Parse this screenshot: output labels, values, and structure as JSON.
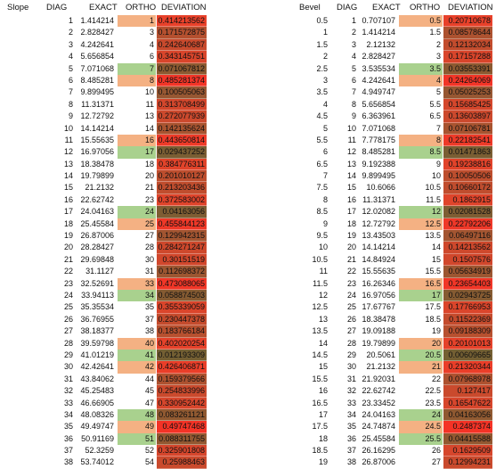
{
  "left": {
    "headers": {
      "label": "Slope",
      "diag": "DIAG",
      "exact": "EXACT",
      "ortho": "ORTHO",
      "deviation": "DEVIATION"
    },
    "rows": [
      {
        "diag": "1",
        "exact": "1.414214",
        "ortho": "1",
        "ortho_color": "#f4b183",
        "dev": "0.414213562",
        "dev_color": "#e8412a"
      },
      {
        "diag": "2",
        "exact": "2.828427",
        "ortho": "3",
        "ortho_color": "",
        "dev": "0.171572875",
        "dev_color": "#b5502f"
      },
      {
        "diag": "3",
        "exact": "4.242641",
        "ortho": "4",
        "ortho_color": "",
        "dev": "0.242640687",
        "dev_color": "#c84a2d"
      },
      {
        "diag": "4",
        "exact": "5.656854",
        "ortho": "6",
        "ortho_color": "",
        "dev": "0.343145751",
        "dev_color": "#d9452b"
      },
      {
        "diag": "5",
        "exact": "7.071068",
        "ortho": "7",
        "ortho_color": "#a9d18e",
        "dev": "0.071067812",
        "dev_color": "#8c5a31"
      },
      {
        "diag": "6",
        "exact": "8.485281",
        "ortho": "8",
        "ortho_color": "#f4b183",
        "dev": "0.485281374",
        "dev_color": "#f23527"
      },
      {
        "diag": "7",
        "exact": "9.899495",
        "ortho": "10",
        "ortho_color": "",
        "dev": "0.100505063",
        "dev_color": "#975732"
      },
      {
        "diag": "8",
        "exact": "11.31371",
        "ortho": "11",
        "ortho_color": "",
        "dev": "0.313708499",
        "dev_color": "#d4472c"
      },
      {
        "diag": "9",
        "exact": "12.72792",
        "ortho": "13",
        "ortho_color": "",
        "dev": "0.272077939",
        "dev_color": "#cc492d"
      },
      {
        "diag": "10",
        "exact": "14.14214",
        "ortho": "14",
        "ortho_color": "",
        "dev": "0.142135624",
        "dev_color": "#a85430"
      },
      {
        "diag": "11",
        "exact": "15.55635",
        "ortho": "16",
        "ortho_color": "#f4b183",
        "dev": "0.443650814",
        "dev_color": "#ee3a28"
      },
      {
        "diag": "12",
        "exact": "16.97056",
        "ortho": "17",
        "ortho_color": "#a9d18e",
        "dev": "0.029437252",
        "dev_color": "#7a5e33"
      },
      {
        "diag": "13",
        "exact": "18.38478",
        "ortho": "18",
        "ortho_color": "",
        "dev": "0.384776311",
        "dev_color": "#e1432a"
      },
      {
        "diag": "14",
        "exact": "19.79899",
        "ortho": "20",
        "ortho_color": "",
        "dev": "0.201010127",
        "dev_color": "#bd4e2e"
      },
      {
        "diag": "15",
        "exact": "21.2132",
        "ortho": "21",
        "ortho_color": "",
        "dev": "0.213203436",
        "dev_color": "#c04d2e"
      },
      {
        "diag": "16",
        "exact": "22.62742",
        "ortho": "23",
        "ortho_color": "",
        "dev": "0.372583002",
        "dev_color": "#df442b"
      },
      {
        "diag": "17",
        "exact": "24.04163",
        "ortho": "24",
        "ortho_color": "#a9d18e",
        "dev": "0.04163056",
        "dev_color": "#7e5d33"
      },
      {
        "diag": "18",
        "exact": "25.45584",
        "ortho": "25",
        "ortho_color": "#f4b183",
        "dev": "0.455844123",
        "dev_color": "#ef3828"
      },
      {
        "diag": "19",
        "exact": "26.87006",
        "ortho": "27",
        "ortho_color": "",
        "dev": "0.129942315",
        "dev_color": "#a35531"
      },
      {
        "diag": "20",
        "exact": "28.28427",
        "ortho": "28",
        "ortho_color": "",
        "dev": "0.284271247",
        "dev_color": "#ce482c"
      },
      {
        "diag": "21",
        "exact": "29.69848",
        "ortho": "30",
        "ortho_color": "",
        "dev": "0.30151519",
        "dev_color": "#d1472c"
      },
      {
        "diag": "22",
        "exact": "31.1127",
        "ortho": "31",
        "ortho_color": "",
        "dev": "0.112698372",
        "dev_color": "#9c5631"
      },
      {
        "diag": "23",
        "exact": "32.52691",
        "ortho": "33",
        "ortho_color": "#f4b183",
        "dev": "0.473088065",
        "dev_color": "#f13627"
      },
      {
        "diag": "24",
        "exact": "33.94113",
        "ortho": "34",
        "ortho_color": "#a9d18e",
        "dev": "0.058874503",
        "dev_color": "#865b32"
      },
      {
        "diag": "25",
        "exact": "35.35534",
        "ortho": "35",
        "ortho_color": "",
        "dev": "0.355339059",
        "dev_color": "#db452b"
      },
      {
        "diag": "26",
        "exact": "36.76955",
        "ortho": "37",
        "ortho_color": "",
        "dev": "0.230447378",
        "dev_color": "#c44b2d"
      },
      {
        "diag": "27",
        "exact": "38.18377",
        "ortho": "38",
        "ortho_color": "",
        "dev": "0.183766184",
        "dev_color": "#b7502f"
      },
      {
        "diag": "28",
        "exact": "39.59798",
        "ortho": "40",
        "ortho_color": "#f4b183",
        "dev": "0.402020254",
        "dev_color": "#e5422a"
      },
      {
        "diag": "29",
        "exact": "41.01219",
        "ortho": "41",
        "ortho_color": "#a9d18e",
        "dev": "0.012193309",
        "dev_color": "#745f33"
      },
      {
        "diag": "30",
        "exact": "42.42641",
        "ortho": "42",
        "ortho_color": "#f4b183",
        "dev": "0.426406871",
        "dev_color": "#ea3e29"
      },
      {
        "diag": "31",
        "exact": "43.84062",
        "ortho": "44",
        "ortho_color": "",
        "dev": "0.159379566",
        "dev_color": "#ad5230"
      },
      {
        "diag": "32",
        "exact": "45.25483",
        "ortho": "45",
        "ortho_color": "",
        "dev": "0.254833996",
        "dev_color": "#ca4a2d"
      },
      {
        "diag": "33",
        "exact": "46.66905",
        "ortho": "47",
        "ortho_color": "",
        "dev": "0.330952442",
        "dev_color": "#d7462c"
      },
      {
        "diag": "34",
        "exact": "48.08326",
        "ortho": "48",
        "ortho_color": "#a9d18e",
        "dev": "0.083261121",
        "dev_color": "#905931"
      },
      {
        "diag": "35",
        "exact": "49.49747",
        "ortho": "49",
        "ortho_color": "#f4b183",
        "dev": "0.49747468",
        "dev_color": "#f43326"
      },
      {
        "diag": "36",
        "exact": "50.91169",
        "ortho": "51",
        "ortho_color": "#a9d18e",
        "dev": "0.088311755",
        "dev_color": "#925831"
      },
      {
        "diag": "37",
        "exact": "52.3259",
        "ortho": "52",
        "ortho_color": "",
        "dev": "0.325901808",
        "dev_color": "#d6462c"
      },
      {
        "diag": "38",
        "exact": "53.74012",
        "ortho": "54",
        "ortho_color": "",
        "dev": "0.25988463",
        "dev_color": "#ca4a2d"
      }
    ]
  },
  "right": {
    "headers": {
      "label": "Bevel",
      "diag": "DIAG",
      "exact": "EXACT",
      "ortho": "ORTHO",
      "deviation": "DEVIATION"
    },
    "rows": [
      {
        "label": "0.5",
        "diag": "1",
        "exact": "0.707107",
        "ortho": "0.5",
        "ortho_color": "#f4b183",
        "dev": "0.20710678",
        "dev_color": "#e8412a"
      },
      {
        "label": "1",
        "diag": "2",
        "exact": "1.414214",
        "ortho": "1.5",
        "ortho_color": "",
        "dev": "0.08578644",
        "dev_color": "#ad5230"
      },
      {
        "label": "1.5",
        "diag": "3",
        "exact": "2.12132",
        "ortho": "2",
        "ortho_color": "",
        "dev": "0.12132034",
        "dev_color": "#c24c2d"
      },
      {
        "label": "2",
        "diag": "4",
        "exact": "2.828427",
        "ortho": "3",
        "ortho_color": "",
        "dev": "0.17157288",
        "dev_color": "#d9452b"
      },
      {
        "label": "2.5",
        "diag": "5",
        "exact": "3.535534",
        "ortho": "3.5",
        "ortho_color": "#a9d18e",
        "dev": "0.03553391",
        "dev_color": "#8c5a31"
      },
      {
        "label": "3",
        "diag": "6",
        "exact": "4.242641",
        "ortho": "4",
        "ortho_color": "#f4b183",
        "dev": "0.24264069",
        "dev_color": "#f23527"
      },
      {
        "label": "3.5",
        "diag": "7",
        "exact": "4.949747",
        "ortho": "5",
        "ortho_color": "",
        "dev": "0.05025253",
        "dev_color": "#975732"
      },
      {
        "label": "4",
        "diag": "8",
        "exact": "5.656854",
        "ortho": "5.5",
        "ortho_color": "",
        "dev": "0.15685425",
        "dev_color": "#d4472c"
      },
      {
        "label": "4.5",
        "diag": "9",
        "exact": "6.363961",
        "ortho": "6.5",
        "ortho_color": "",
        "dev": "0.13603897",
        "dev_color": "#cc492d"
      },
      {
        "label": "5",
        "diag": "10",
        "exact": "7.071068",
        "ortho": "7",
        "ortho_color": "",
        "dev": "0.07106781",
        "dev_color": "#a85430"
      },
      {
        "label": "5.5",
        "diag": "11",
        "exact": "7.778175",
        "ortho": "8",
        "ortho_color": "#f4b183",
        "dev": "0.22182541",
        "dev_color": "#ee3a28"
      },
      {
        "label": "6",
        "diag": "12",
        "exact": "8.485281",
        "ortho": "8.5",
        "ortho_color": "#a9d18e",
        "dev": "0.01471863",
        "dev_color": "#7a5e33"
      },
      {
        "label": "6.5",
        "diag": "13",
        "exact": "9.192388",
        "ortho": "9",
        "ortho_color": "",
        "dev": "0.19238816",
        "dev_color": "#e1432a"
      },
      {
        "label": "7",
        "diag": "14",
        "exact": "9.899495",
        "ortho": "10",
        "ortho_color": "",
        "dev": "0.10050506",
        "dev_color": "#bd4e2e"
      },
      {
        "label": "7.5",
        "diag": "15",
        "exact": "10.6066",
        "ortho": "10.5",
        "ortho_color": "",
        "dev": "0.10660172",
        "dev_color": "#c04d2e"
      },
      {
        "label": "8",
        "diag": "16",
        "exact": "11.31371",
        "ortho": "11.5",
        "ortho_color": "",
        "dev": "0.1862915",
        "dev_color": "#df442b"
      },
      {
        "label": "8.5",
        "diag": "17",
        "exact": "12.02082",
        "ortho": "12",
        "ortho_color": "#a9d18e",
        "dev": "0.02081528",
        "dev_color": "#7e5d33"
      },
      {
        "label": "9",
        "diag": "18",
        "exact": "12.72792",
        "ortho": "12.5",
        "ortho_color": "#f4b183",
        "dev": "0.22792206",
        "dev_color": "#ef3828"
      },
      {
        "label": "9.5",
        "diag": "19",
        "exact": "13.43503",
        "ortho": "13.5",
        "ortho_color": "",
        "dev": "0.06497116",
        "dev_color": "#a35531"
      },
      {
        "label": "10",
        "diag": "20",
        "exact": "14.14214",
        "ortho": "14",
        "ortho_color": "",
        "dev": "0.14213562",
        "dev_color": "#ce482c"
      },
      {
        "label": "10.5",
        "diag": "21",
        "exact": "14.84924",
        "ortho": "15",
        "ortho_color": "",
        "dev": "0.1507576",
        "dev_color": "#d1472c"
      },
      {
        "label": "11",
        "diag": "22",
        "exact": "15.55635",
        "ortho": "15.5",
        "ortho_color": "",
        "dev": "0.05634919",
        "dev_color": "#9c5631"
      },
      {
        "label": "11.5",
        "diag": "23",
        "exact": "16.26346",
        "ortho": "16.5",
        "ortho_color": "#f4b183",
        "dev": "0.23654403",
        "dev_color": "#f13627"
      },
      {
        "label": "12",
        "diag": "24",
        "exact": "16.97056",
        "ortho": "17",
        "ortho_color": "#a9d18e",
        "dev": "0.02943725",
        "dev_color": "#865b32"
      },
      {
        "label": "12.5",
        "diag": "25",
        "exact": "17.67767",
        "ortho": "17.5",
        "ortho_color": "",
        "dev": "0.17766953",
        "dev_color": "#db452b"
      },
      {
        "label": "13",
        "diag": "26",
        "exact": "18.38478",
        "ortho": "18.5",
        "ortho_color": "",
        "dev": "0.11522369",
        "dev_color": "#c44b2d"
      },
      {
        "label": "13.5",
        "diag": "27",
        "exact": "19.09188",
        "ortho": "19",
        "ortho_color": "",
        "dev": "0.09188309",
        "dev_color": "#b7502f"
      },
      {
        "label": "14",
        "diag": "28",
        "exact": "19.79899",
        "ortho": "20",
        "ortho_color": "#f4b183",
        "dev": "0.20101013",
        "dev_color": "#e5422a"
      },
      {
        "label": "14.5",
        "diag": "29",
        "exact": "20.5061",
        "ortho": "20.5",
        "ortho_color": "#a9d18e",
        "dev": "0.00609665",
        "dev_color": "#745f33"
      },
      {
        "label": "15",
        "diag": "30",
        "exact": "21.2132",
        "ortho": "21",
        "ortho_color": "#f4b183",
        "dev": "0.21320344",
        "dev_color": "#ea3e29"
      },
      {
        "label": "15.5",
        "diag": "31",
        "exact": "21.92031",
        "ortho": "22",
        "ortho_color": "",
        "dev": "0.07968978",
        "dev_color": "#ad5230"
      },
      {
        "label": "16",
        "diag": "32",
        "exact": "22.62742",
        "ortho": "22.5",
        "ortho_color": "",
        "dev": "0.127417",
        "dev_color": "#ca4a2d"
      },
      {
        "label": "16.5",
        "diag": "33",
        "exact": "23.33452",
        "ortho": "23.5",
        "ortho_color": "",
        "dev": "0.16547622",
        "dev_color": "#d7462c"
      },
      {
        "label": "17",
        "diag": "34",
        "exact": "24.04163",
        "ortho": "24",
        "ortho_color": "#a9d18e",
        "dev": "0.04163056",
        "dev_color": "#905931"
      },
      {
        "label": "17.5",
        "diag": "35",
        "exact": "24.74874",
        "ortho": "24.5",
        "ortho_color": "#f4b183",
        "dev": "0.2487374",
        "dev_color": "#f43326"
      },
      {
        "label": "18",
        "diag": "36",
        "exact": "25.45584",
        "ortho": "25.5",
        "ortho_color": "#a9d18e",
        "dev": "0.04415588",
        "dev_color": "#925831"
      },
      {
        "label": "18.5",
        "diag": "37",
        "exact": "26.16295",
        "ortho": "26",
        "ortho_color": "",
        "dev": "0.1629509",
        "dev_color": "#d6462c"
      },
      {
        "label": "19",
        "diag": "38",
        "exact": "26.87006",
        "ortho": "27",
        "ortho_color": "",
        "dev": "0.12994231",
        "dev_color": "#ca4a2d"
      }
    ]
  }
}
